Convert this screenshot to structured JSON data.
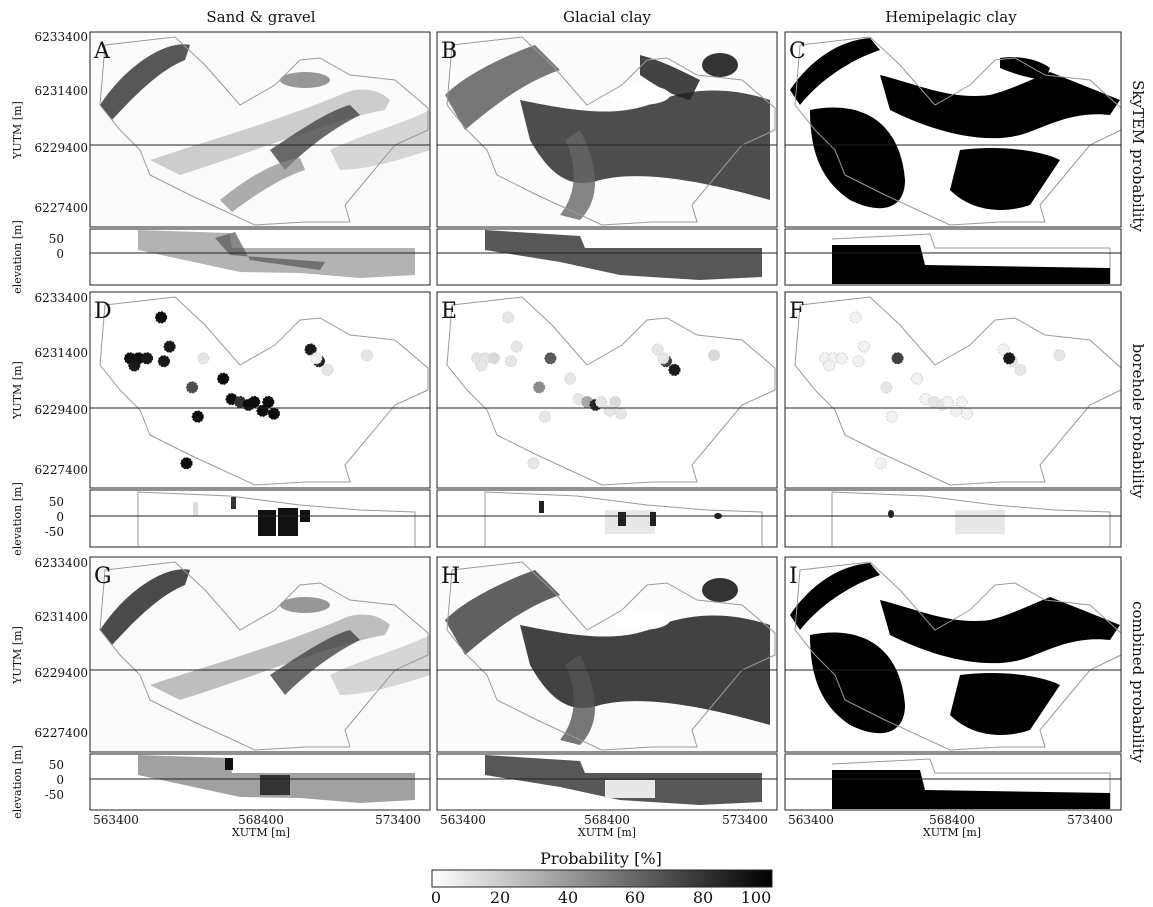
{
  "chart_data": {
    "type": "heatmap",
    "column_titles": [
      "Sand & gravel",
      "Glacial clay",
      "Hemipelagic clay"
    ],
    "row_titles": [
      "SkyTEM probability",
      "borehole probability",
      "combined probability"
    ],
    "panel_letters": [
      "A",
      "B",
      "C",
      "D",
      "E",
      "F",
      "G",
      "H",
      "I"
    ],
    "ylabel_map": "YUTM [m]",
    "ylabel_section": "elevation [m]",
    "xlabel": "XUTM [m]",
    "y_ticks": [
      "6233400",
      "6231400",
      "6229400",
      "6227400"
    ],
    "elev_ticks_row1": [
      "50",
      "0"
    ],
    "elev_ticks_rows23": [
      "50",
      "0",
      "-50"
    ],
    "x_ticks": [
      "563400",
      "568400",
      "573400"
    ],
    "xlim": [
      563400,
      573400
    ],
    "ylim": [
      6227400,
      6233400
    ],
    "colorbar": {
      "label": "Probability [%]",
      "ticks": [
        "0",
        "20",
        "40",
        "60",
        "80",
        "100"
      ],
      "range": [
        0,
        100
      ],
      "colors": [
        "#ffffff",
        "#000000"
      ]
    },
    "section_line_y": 6229400,
    "boreholes": [
      {
        "x": 563900,
        "y": 6231300,
        "p": [
          95,
          10,
          5
        ]
      },
      {
        "x": 564200,
        "y": 6231300,
        "p": [
          95,
          10,
          5
        ]
      },
      {
        "x": 564500,
        "y": 6231300,
        "p": [
          90,
          15,
          5
        ]
      },
      {
        "x": 564050,
        "y": 6231050,
        "p": [
          90,
          10,
          5
        ]
      },
      {
        "x": 565000,
        "y": 6232700,
        "p": [
          95,
          10,
          5
        ]
      },
      {
        "x": 565300,
        "y": 6231700,
        "p": [
          90,
          10,
          5
        ]
      },
      {
        "x": 565100,
        "y": 6231200,
        "p": [
          90,
          10,
          5
        ]
      },
      {
        "x": 566500,
        "y": 6231300,
        "p": [
          10,
          65,
          75
        ]
      },
      {
        "x": 566100,
        "y": 6230300,
        "p": [
          70,
          45,
          10
        ]
      },
      {
        "x": 567200,
        "y": 6230600,
        "p": [
          95,
          10,
          5
        ]
      },
      {
        "x": 566300,
        "y": 6229300,
        "p": [
          95,
          10,
          5
        ]
      },
      {
        "x": 565900,
        "y": 6227700,
        "p": [
          95,
          10,
          5
        ]
      },
      {
        "x": 567500,
        "y": 6229900,
        "p": [
          95,
          10,
          5
        ]
      },
      {
        "x": 567800,
        "y": 6229800,
        "p": [
          80,
          35,
          10
        ]
      },
      {
        "x": 568100,
        "y": 6229700,
        "p": [
          95,
          85,
          10
        ]
      },
      {
        "x": 568300,
        "y": 6229800,
        "p": [
          95,
          10,
          5
        ]
      },
      {
        "x": 568800,
        "y": 6229800,
        "p": [
          95,
          15,
          5
        ]
      },
      {
        "x": 568600,
        "y": 6229500,
        "p": [
          95,
          10,
          5
        ]
      },
      {
        "x": 569000,
        "y": 6229400,
        "p": [
          95,
          10,
          5
        ]
      },
      {
        "x": 570300,
        "y": 6231600,
        "p": [
          90,
          10,
          5
        ]
      },
      {
        "x": 570600,
        "y": 6231200,
        "p": [
          85,
          75,
          10
        ]
      },
      {
        "x": 570900,
        "y": 6230900,
        "p": [
          10,
          90,
          10
        ]
      },
      {
        "x": 570500,
        "y": 6231300,
        "p": [
          5,
          10,
          90
        ]
      },
      {
        "x": 572300,
        "y": 6231400,
        "p": [
          10,
          15,
          10
        ]
      }
    ]
  }
}
